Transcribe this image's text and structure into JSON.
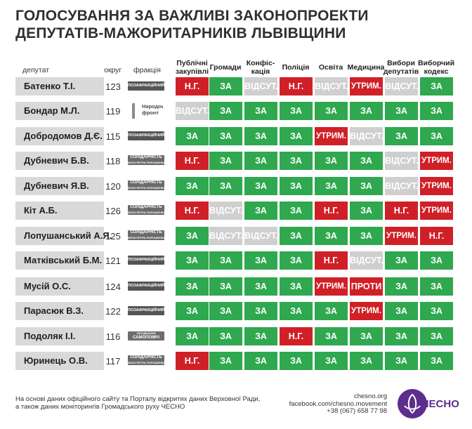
{
  "title": {
    "line1": "ГОЛОСУВАННЯ ЗА ВАЖЛИВІ ЗАКОНОПРОЕКТИ",
    "line2": "ДЕПУТАТІВ-МАЖОРИТАРНИКІВ ЛЬВІВЩИНИ"
  },
  "headers": {
    "deputy": "депутат",
    "okrug": "округ",
    "faction": "фракція",
    "columns": [
      {
        "line1": "Публічні",
        "line2": "закупівлі"
      },
      {
        "line1": "Громади",
        "line2": ""
      },
      {
        "line1": "Конфіс-",
        "line2": "кація"
      },
      {
        "line1": "Поліція",
        "line2": ""
      },
      {
        "line1": "Освіта",
        "line2": ""
      },
      {
        "line1": "Медицина",
        "line2": ""
      },
      {
        "line1": "Вибори",
        "line2": "депутатів"
      },
      {
        "line1": "Виборчий",
        "line2": "кодекс"
      }
    ]
  },
  "labels": {
    "za": "ЗА",
    "ng": "Н.Г.",
    "vid": "ВІДСУТ.",
    "utr": "УТРИМ.",
    "pro": "ПРОТИ"
  },
  "factions": {
    "poza": "ПОЗАФРАКЦІЙНИЙ",
    "sol_l1": "СОЛІДАРНІСТЬ",
    "sol_l2": "БЛОК ПЕТРА ПОРОШЕНКА",
    "nf_l1": "Народний",
    "nf_l2": "фронт",
    "sam_l1": "ОБ'ЄДНАННЯ",
    "sam_l2": "САМОПОМІЧ"
  },
  "rows": [
    {
      "name": "Батенко Т.І.",
      "okrug": "123",
      "faction": "poza",
      "votes": [
        "ng",
        "za",
        "vid",
        "ng",
        "vid",
        "utr",
        "vid",
        "za"
      ]
    },
    {
      "name": "Бондар М.Л.",
      "okrug": "119",
      "faction": "nf",
      "votes": [
        "vid",
        "za",
        "za",
        "za",
        "za",
        "za",
        "za",
        "za"
      ]
    },
    {
      "name": "Добродомов Д.Є.",
      "okrug": "115",
      "faction": "poza",
      "votes": [
        "za",
        "za",
        "za",
        "za",
        "utr",
        "vid",
        "za",
        "za"
      ]
    },
    {
      "name": "Дубневич Б.В.",
      "okrug": "118",
      "faction": "sol",
      "votes": [
        "ng",
        "za",
        "za",
        "za",
        "za",
        "za",
        "vid",
        "utr"
      ]
    },
    {
      "name": "Дубневич Я.В.",
      "okrug": "120",
      "faction": "sol",
      "votes": [
        "za",
        "za",
        "za",
        "za",
        "za",
        "za",
        "vid",
        "utr"
      ]
    },
    {
      "name": "Кіт А.Б.",
      "okrug": "126",
      "faction": "sol",
      "votes": [
        "ng",
        "vid",
        "za",
        "za",
        "ng",
        "za",
        "ng",
        "utr"
      ]
    },
    {
      "name": "Лопушанський А.Я.",
      "okrug": "125",
      "faction": "sol",
      "votes": [
        "za",
        "vid",
        "vid",
        "za",
        "za",
        "za",
        "utr",
        "ng"
      ]
    },
    {
      "name": "Матківський Б.М.",
      "okrug": "121",
      "faction": "poza",
      "votes": [
        "za",
        "za",
        "za",
        "za",
        "ng",
        "vid",
        "za",
        "za"
      ]
    },
    {
      "name": "Мусій О.С.",
      "okrug": "124",
      "faction": "poza",
      "votes": [
        "za",
        "za",
        "za",
        "za",
        "utr",
        "pro",
        "za",
        "za"
      ]
    },
    {
      "name": "Парасюк В.З.",
      "okrug": "122",
      "faction": "poza",
      "votes": [
        "za",
        "za",
        "za",
        "za",
        "za",
        "utr",
        "za",
        "za"
      ]
    },
    {
      "name": "Подоляк І.І.",
      "okrug": "116",
      "faction": "sam",
      "votes": [
        "za",
        "za",
        "za",
        "ng",
        "za",
        "za",
        "za",
        "za"
      ]
    },
    {
      "name": "Юринець О.В.",
      "okrug": "117",
      "faction": "sol",
      "votes": [
        "ng",
        "za",
        "za",
        "za",
        "za",
        "za",
        "za",
        "za"
      ]
    }
  ],
  "footer": {
    "line1": "На основі даних офіційного сайту та Порталу відкритих даних Верховної Ради,",
    "line2": "а також даних моніторингів Громадського руху ЧЕСНО"
  },
  "contacts": {
    "site": "chesno.org",
    "fb": "facebook.com/chesno.movement",
    "phone": "+38 (067) 658 77 98"
  },
  "logo": {
    "text": "ЧЕСНО"
  },
  "colors": {
    "za": "#2fa84f",
    "red": "#d02027",
    "absent": "#cfcfcf",
    "brand": "#5b2d8c"
  }
}
